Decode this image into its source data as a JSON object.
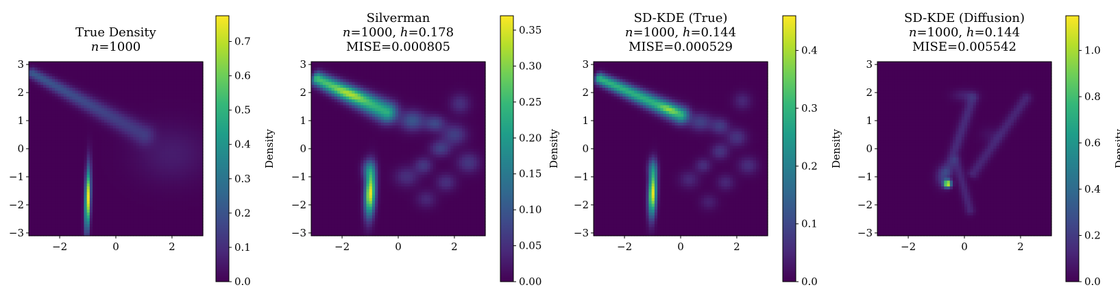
{
  "figure": {
    "colormap": "viridis",
    "colormap_stops": [
      "#440154",
      "#482878",
      "#3e4989",
      "#31688e",
      "#26828e",
      "#1f9e89",
      "#35b779",
      "#6ece58",
      "#b5de2b",
      "#fde725"
    ]
  },
  "chart_data": [
    {
      "type": "heatmap",
      "title_lines": [
        {
          "parts": [
            {
              "text": "True Density"
            }
          ]
        },
        {
          "parts": [
            {
              "text": "n",
              "italic": true
            },
            {
              "text": "=1000"
            }
          ]
        }
      ],
      "xlim": [
        -3.1,
        3.1
      ],
      "ylim": [
        -3.1,
        3.1
      ],
      "x_ticks": [
        {
          "v": -2,
          "label": "−2"
        },
        {
          "v": 0,
          "label": "0"
        },
        {
          "v": 2,
          "label": "2"
        }
      ],
      "y_ticks": [
        {
          "v": 3,
          "label": "3"
        },
        {
          "v": 2,
          "label": "2"
        },
        {
          "v": 1,
          "label": "1"
        },
        {
          "v": 0,
          "label": "0"
        },
        {
          "v": -1,
          "label": "−1"
        },
        {
          "v": -2,
          "label": "−2"
        },
        {
          "v": -3,
          "label": "−3"
        }
      ],
      "colorbar": {
        "label": "Density",
        "min": 0,
        "max": 0.775,
        "ticks": [
          {
            "v": 0,
            "label": "0.0"
          },
          {
            "v": 0.1,
            "label": "0.1"
          },
          {
            "v": 0.2,
            "label": "0.2"
          },
          {
            "v": 0.3,
            "label": "0.3"
          },
          {
            "v": 0.4,
            "label": "0.4"
          },
          {
            "v": 0.5,
            "label": "0.5"
          },
          {
            "v": 0.6,
            "label": "0.6"
          },
          {
            "v": 0.7,
            "label": "0.7"
          }
        ]
      },
      "grid_resolution": 60,
      "density_components": [
        {
          "kind": "gauss",
          "x": -1.0,
          "y": -1.8,
          "sx": 0.07,
          "sy": 0.75,
          "rho": 0.3,
          "amp": 0.78
        },
        {
          "kind": "ridge",
          "x0": -3.0,
          "y0": 2.7,
          "x1": 1.0,
          "y1": 0.5,
          "width": 0.13,
          "width_growth": 0.1,
          "amp": 0.22,
          "decay": 0.45
        },
        {
          "kind": "gauss",
          "x": 2.0,
          "y": -0.2,
          "sx": 0.9,
          "sy": 0.7,
          "rho": 0.0,
          "amp": 0.06
        }
      ]
    },
    {
      "type": "heatmap",
      "title_lines": [
        {
          "parts": [
            {
              "text": "Silverman"
            }
          ]
        },
        {
          "parts": [
            {
              "text": "n",
              "italic": true
            },
            {
              "text": "=1000, "
            },
            {
              "text": "h",
              "italic": true
            },
            {
              "text": "=0.178"
            }
          ]
        },
        {
          "parts": [
            {
              "text": "MISE=0.000805"
            }
          ]
        }
      ],
      "xlim": [
        -3.1,
        3.1
      ],
      "ylim": [
        -3.1,
        3.1
      ],
      "x_ticks": [
        {
          "v": -2,
          "label": "−2"
        },
        {
          "v": 0,
          "label": "0"
        },
        {
          "v": 2,
          "label": "2"
        }
      ],
      "y_ticks": [
        {
          "v": 3,
          "label": "3"
        },
        {
          "v": 2,
          "label": "2"
        },
        {
          "v": 1,
          "label": "1"
        },
        {
          "v": 0,
          "label": "0"
        },
        {
          "v": -1,
          "label": "−1"
        },
        {
          "v": -2,
          "label": "−2"
        },
        {
          "v": -3,
          "label": "−3"
        }
      ],
      "colorbar": {
        "label": "Density",
        "min": 0,
        "max": 0.37,
        "ticks": [
          {
            "v": 0,
            "label": "0.00"
          },
          {
            "v": 0.05,
            "label": "0.05"
          },
          {
            "v": 0.1,
            "label": "0.10"
          },
          {
            "v": 0.15,
            "label": "0.15"
          },
          {
            "v": 0.2,
            "label": "0.20"
          },
          {
            "v": 0.25,
            "label": "0.25"
          },
          {
            "v": 0.3,
            "label": "0.30"
          },
          {
            "v": 0.35,
            "label": "0.35"
          }
        ]
      },
      "grid_resolution": 60,
      "density_components": [
        {
          "kind": "gauss",
          "x": -1.0,
          "y": -1.6,
          "sx": 0.13,
          "sy": 0.55,
          "rho": 0.2,
          "amp": 0.36
        },
        {
          "kind": "gauss",
          "x": -1.05,
          "y": -0.75,
          "sx": 0.16,
          "sy": 0.25,
          "rho": 0.0,
          "amp": 0.12
        },
        {
          "kind": "ridge",
          "x0": -2.9,
          "y0": 2.5,
          "x1": -0.4,
          "y1": 1.3,
          "width": 0.17,
          "width_growth": 0.05,
          "amp": 0.26,
          "decay": 0.1
        },
        {
          "kind": "gauss",
          "x": -1.7,
          "y": 1.95,
          "sx": 0.45,
          "sy": 0.2,
          "rho": -0.6,
          "amp": 0.08
        },
        {
          "kind": "gauss",
          "x": 0.5,
          "y": 1.0,
          "sx": 0.3,
          "sy": 0.25,
          "rho": 0.0,
          "amp": 0.1
        },
        {
          "kind": "gauss",
          "x": 1.3,
          "y": 0.9,
          "sx": 0.25,
          "sy": 0.2,
          "rho": 0.0,
          "amp": 0.08
        },
        {
          "kind": "gauss",
          "x": 2.0,
          "y": 0.5,
          "sx": 0.3,
          "sy": 0.25,
          "rho": 0.0,
          "amp": 0.07
        },
        {
          "kind": "gauss",
          "x": 1.5,
          "y": 0.0,
          "sx": 0.25,
          "sy": 0.2,
          "rho": 0.0,
          "amp": 0.07
        },
        {
          "kind": "gauss",
          "x": 0.9,
          "y": -0.6,
          "sx": 0.22,
          "sy": 0.2,
          "rho": 0.0,
          "amp": 0.06
        },
        {
          "kind": "gauss",
          "x": 2.5,
          "y": -0.5,
          "sx": 0.28,
          "sy": 0.25,
          "rho": 0.0,
          "amp": 0.06
        },
        {
          "kind": "gauss",
          "x": 1.7,
          "y": -1.2,
          "sx": 0.25,
          "sy": 0.22,
          "rho": 0.0,
          "amp": 0.05
        },
        {
          "kind": "gauss",
          "x": 0.3,
          "y": -1.0,
          "sx": 0.3,
          "sy": 0.25,
          "rho": 0.0,
          "amp": 0.05
        },
        {
          "kind": "gauss",
          "x": 2.2,
          "y": 1.6,
          "sx": 0.25,
          "sy": 0.25,
          "rho": 0.0,
          "amp": 0.05
        },
        {
          "kind": "gauss",
          "x": 1.0,
          "y": -1.8,
          "sx": 0.25,
          "sy": 0.22,
          "rho": 0.0,
          "amp": 0.04
        }
      ]
    },
    {
      "type": "heatmap",
      "title_lines": [
        {
          "parts": [
            {
              "text": "SD-KDE (True)"
            }
          ]
        },
        {
          "parts": [
            {
              "text": "n",
              "italic": true
            },
            {
              "text": "=1000, "
            },
            {
              "text": "h",
              "italic": true
            },
            {
              "text": "=0.144"
            }
          ]
        },
        {
          "parts": [
            {
              "text": "MISE=0.000529"
            }
          ]
        }
      ],
      "xlim": [
        -3.1,
        3.1
      ],
      "ylim": [
        -3.1,
        3.1
      ],
      "x_ticks": [
        {
          "v": -2,
          "label": "−2"
        },
        {
          "v": 0,
          "label": "0"
        },
        {
          "v": 2,
          "label": "2"
        }
      ],
      "y_ticks": [
        {
          "v": 3,
          "label": "3"
        },
        {
          "v": 2,
          "label": "2"
        },
        {
          "v": 1,
          "label": "1"
        },
        {
          "v": 0,
          "label": "0"
        },
        {
          "v": -1,
          "label": "−1"
        },
        {
          "v": -2,
          "label": "−2"
        },
        {
          "v": -3,
          "label": "−3"
        }
      ],
      "colorbar": {
        "label": "Density",
        "min": 0,
        "max": 0.46,
        "ticks": [
          {
            "v": 0,
            "label": "0.0"
          },
          {
            "v": 0.1,
            "label": "0.1"
          },
          {
            "v": 0.2,
            "label": "0.2"
          },
          {
            "v": 0.3,
            "label": "0.3"
          },
          {
            "v": 0.4,
            "label": "0.4"
          }
        ]
      },
      "grid_resolution": 60,
      "density_components": [
        {
          "kind": "gauss",
          "x": -1.0,
          "y": -1.6,
          "sx": 0.1,
          "sy": 0.55,
          "rho": 0.2,
          "amp": 0.45
        },
        {
          "kind": "gauss",
          "x": -1.0,
          "y": -0.7,
          "sx": 0.12,
          "sy": 0.25,
          "rho": 0.0,
          "amp": 0.12
        },
        {
          "kind": "ridge",
          "x0": -2.9,
          "y0": 2.5,
          "x1": 0.0,
          "y1": 1.2,
          "width": 0.14,
          "width_growth": 0.05,
          "amp": 0.3,
          "decay": 0.05
        },
        {
          "kind": "gauss",
          "x": -0.4,
          "y": 1.4,
          "sx": 0.25,
          "sy": 0.14,
          "rho": -0.5,
          "amp": 0.1
        },
        {
          "kind": "gauss",
          "x": 0.7,
          "y": 0.95,
          "sx": 0.28,
          "sy": 0.22,
          "rho": 0.0,
          "amp": 0.09
        },
        {
          "kind": "gauss",
          "x": 1.4,
          "y": 0.8,
          "sx": 0.22,
          "sy": 0.2,
          "rho": 0.0,
          "amp": 0.08
        },
        {
          "kind": "gauss",
          "x": 2.0,
          "y": 0.4,
          "sx": 0.25,
          "sy": 0.22,
          "rho": 0.0,
          "amp": 0.07
        },
        {
          "kind": "gauss",
          "x": 1.4,
          "y": -0.1,
          "sx": 0.22,
          "sy": 0.2,
          "rho": 0.0,
          "amp": 0.07
        },
        {
          "kind": "gauss",
          "x": 0.8,
          "y": -0.6,
          "sx": 0.2,
          "sy": 0.18,
          "rho": 0.0,
          "amp": 0.06
        },
        {
          "kind": "gauss",
          "x": 2.4,
          "y": -0.6,
          "sx": 0.25,
          "sy": 0.22,
          "rho": 0.0,
          "amp": 0.06
        },
        {
          "kind": "gauss",
          "x": 1.6,
          "y": -1.2,
          "sx": 0.22,
          "sy": 0.2,
          "rho": 0.0,
          "amp": 0.05
        },
        {
          "kind": "gauss",
          "x": 0.3,
          "y": -1.1,
          "sx": 0.25,
          "sy": 0.22,
          "rho": 0.0,
          "amp": 0.05
        },
        {
          "kind": "gauss",
          "x": 2.2,
          "y": 1.7,
          "sx": 0.22,
          "sy": 0.22,
          "rho": 0.0,
          "amp": 0.05
        },
        {
          "kind": "gauss",
          "x": 1.0,
          "y": -1.9,
          "sx": 0.22,
          "sy": 0.2,
          "rho": 0.0,
          "amp": 0.04
        }
      ]
    },
    {
      "type": "heatmap",
      "title_lines": [
        {
          "parts": [
            {
              "text": "SD-KDE (Diffusion)"
            }
          ]
        },
        {
          "parts": [
            {
              "text": "n",
              "italic": true
            },
            {
              "text": "=1000, "
            },
            {
              "text": "h",
              "italic": true
            },
            {
              "text": "=0.144"
            }
          ]
        },
        {
          "parts": [
            {
              "text": "MISE=0.005542"
            }
          ]
        }
      ],
      "xlim": [
        -3.1,
        3.1
      ],
      "ylim": [
        -3.1,
        3.1
      ],
      "x_ticks": [
        {
          "v": -2,
          "label": "−2"
        },
        {
          "v": 0,
          "label": "0"
        },
        {
          "v": 2,
          "label": "2"
        }
      ],
      "y_ticks": [
        {
          "v": 3,
          "label": "3"
        },
        {
          "v": 2,
          "label": "2"
        },
        {
          "v": 1,
          "label": "1"
        },
        {
          "v": 0,
          "label": "0"
        },
        {
          "v": -1,
          "label": "−1"
        },
        {
          "v": -2,
          "label": "−2"
        },
        {
          "v": -3,
          "label": "−3"
        }
      ],
      "colorbar": {
        "label": "Density",
        "min": 0,
        "max": 1.15,
        "ticks": [
          {
            "v": 0,
            "label": "0.0"
          },
          {
            "v": 0.2,
            "label": "0.2"
          },
          {
            "v": 0.4,
            "label": "0.4"
          },
          {
            "v": 0.6,
            "label": "0.6"
          },
          {
            "v": 0.8,
            "label": "0.8"
          },
          {
            "v": 1.0,
            "label": "1.0"
          }
        ]
      },
      "grid_resolution": 60,
      "density_components": [
        {
          "kind": "gauss",
          "x": -0.6,
          "y": -1.25,
          "sx": 0.09,
          "sy": 0.09,
          "rho": 0.0,
          "amp": 1.12
        },
        {
          "kind": "gauss",
          "x": -0.75,
          "y": -1.0,
          "sx": 0.18,
          "sy": 0.25,
          "rho": 0.0,
          "amp": 0.22
        },
        {
          "kind": "ridge",
          "x0": -0.6,
          "y0": -0.8,
          "x1": 0.3,
          "y1": 1.8,
          "width": 0.14,
          "width_growth": 0.0,
          "amp": 0.14,
          "decay": 0.0
        },
        {
          "kind": "ridge",
          "x0": -0.3,
          "y0": -0.4,
          "x1": 0.2,
          "y1": -2.2,
          "width": 0.12,
          "width_growth": 0.0,
          "amp": 0.12,
          "decay": 0.0
        },
        {
          "kind": "ridge",
          "x0": 0.3,
          "y0": -0.9,
          "x1": 2.2,
          "y1": 1.8,
          "width": 0.14,
          "width_growth": 0.0,
          "amp": 0.12,
          "decay": 0.0
        },
        {
          "kind": "gauss",
          "x": 0.0,
          "y": 1.9,
          "sx": 0.3,
          "sy": 0.15,
          "rho": 0.0,
          "amp": 0.1
        },
        {
          "kind": "gauss",
          "x": 0.9,
          "y": 0.5,
          "sx": 0.25,
          "sy": 0.2,
          "rho": 0.0,
          "amp": 0.05
        }
      ]
    }
  ]
}
